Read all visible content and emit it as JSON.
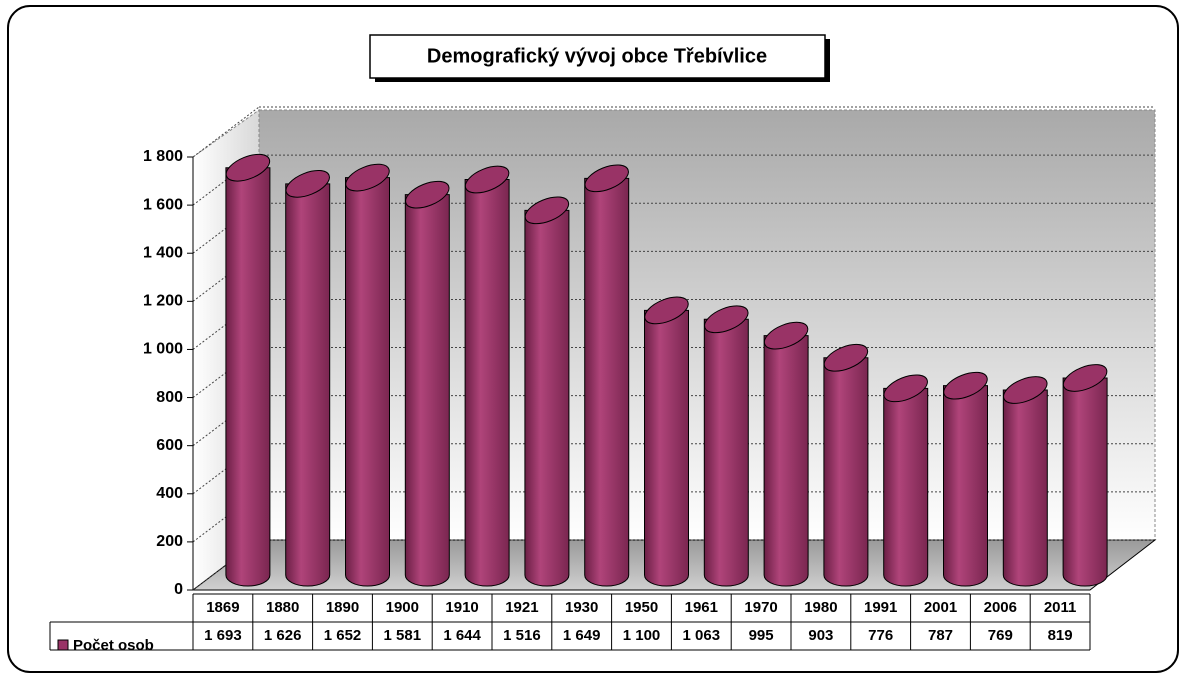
{
  "chart_data": {
    "type": "bar",
    "title": "Demografický vývoj obce Třebívlice",
    "categories": [
      "1869",
      "1880",
      "1890",
      "1900",
      "1910",
      "1921",
      "1930",
      "1950",
      "1961",
      "1970",
      "1980",
      "1991",
      "2001",
      "2006",
      "2011"
    ],
    "series": [
      {
        "name": "Počet osob",
        "color": "#993366",
        "values": [
          1693,
          1626,
          1652,
          1581,
          1644,
          1516,
          1649,
          1100,
          1063,
          995,
          903,
          776,
          787,
          769,
          819
        ],
        "value_labels": [
          "1 693",
          "1 626",
          "1 652",
          "1 581",
          "1 644",
          "1 516",
          "1 649",
          "1 100",
          "1 063",
          "995",
          "903",
          "776",
          "787",
          "769",
          "819"
        ]
      }
    ],
    "ylim": [
      0,
      1800
    ],
    "yticks": [
      0,
      200,
      400,
      600,
      800,
      {
        "value": 1000,
        "label": "1 000"
      },
      {
        "value": 1200,
        "label": "1 200"
      },
      {
        "value": 1400,
        "label": "1 400"
      },
      {
        "value": 1600,
        "label": "1 600"
      },
      {
        "value": 1800,
        "label": "1 800"
      }
    ],
    "grid": true
  }
}
